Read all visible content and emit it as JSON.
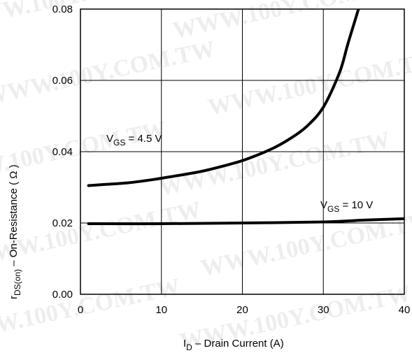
{
  "watermark": "WWW.100Y.COM.TW",
  "chart_data": {
    "type": "line",
    "xlabel": {
      "main": "I",
      "sub": "D",
      "rest": "  –  Drain Current (A)"
    },
    "ylabel": {
      "main": "r",
      "sub": "DS(on)",
      "rest": "  –  On-Resistance ( Ω )"
    },
    "xlim": [
      0,
      40
    ],
    "ylim": [
      0,
      0.08
    ],
    "xticks": [
      0,
      10,
      20,
      30,
      40
    ],
    "xtick_labels": [
      "0",
      "10",
      "20",
      "30",
      "40"
    ],
    "yticks": [
      0,
      0.02,
      0.04,
      0.06,
      0.08
    ],
    "ytick_labels": [
      "0.00",
      "0.02",
      "0.04",
      "0.06",
      "0.08"
    ],
    "grid": true,
    "series": [
      {
        "label": {
          "main": "V",
          "sub": "GS",
          "rest": " = 4.5 V"
        },
        "x": [
          1,
          3,
          6,
          9,
          12,
          15,
          18,
          20,
          22,
          24,
          26,
          28,
          30,
          32,
          33,
          34,
          35
        ],
        "y": [
          0.0305,
          0.0308,
          0.0313,
          0.0322,
          0.0333,
          0.0345,
          0.0362,
          0.0375,
          0.0392,
          0.0412,
          0.0438,
          0.0472,
          0.0525,
          0.0622,
          0.07,
          0.0775,
          0.085
        ]
      },
      {
        "label": {
          "main": "V",
          "sub": "GS",
          "rest": " = 10 V"
        },
        "x": [
          1,
          10,
          20,
          30,
          35,
          40
        ],
        "y": [
          0.0198,
          0.0198,
          0.02,
          0.0203,
          0.0208,
          0.0212
        ]
      }
    ]
  }
}
